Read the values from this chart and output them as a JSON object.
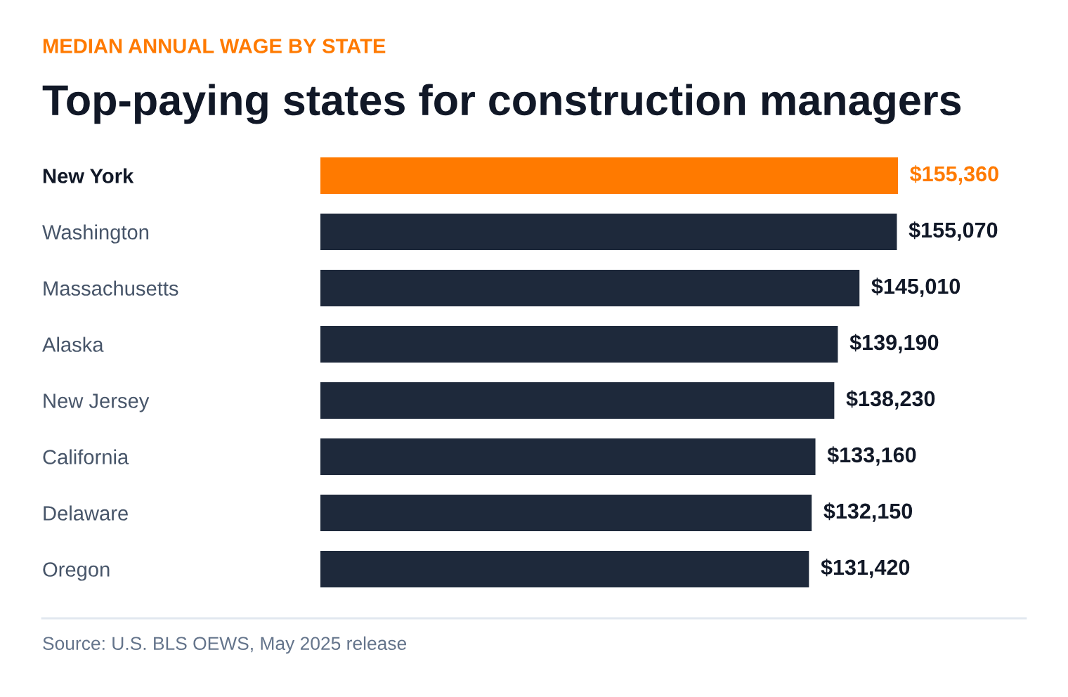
{
  "chart_data": {
    "type": "bar",
    "orientation": "horizontal",
    "subtitle": "MEDIAN ANNUAL WAGE BY STATE",
    "title": "Top-paying states for construction managers",
    "categories": [
      "New York",
      "Washington",
      "Massachusetts",
      "Alaska",
      "New Jersey",
      "California",
      "Delaware",
      "Oregon"
    ],
    "values": [
      155360,
      155070,
      145010,
      139190,
      138230,
      133160,
      132150,
      131420
    ],
    "value_labels": [
      "$155,360",
      "$155,070",
      "$145,010",
      "$139,190",
      "$138,230",
      "$133,160",
      "$132,150",
      "$131,420"
    ],
    "colors": [
      "#ff7a00",
      "#1e293b",
      "#1e293b",
      "#1e293b",
      "#1e293b",
      "#1e293b",
      "#1e293b",
      "#1e293b"
    ],
    "grid": false,
    "legend": false,
    "annotations": [
      "Source: U.S. BLS OEWS, May 2025 release"
    ]
  }
}
